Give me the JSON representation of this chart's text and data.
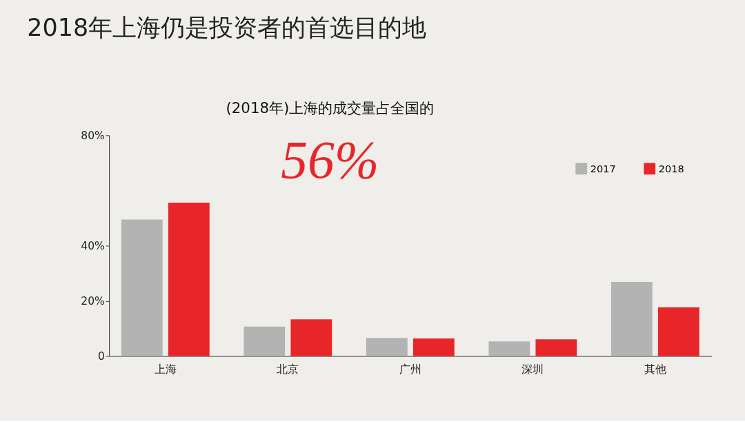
{
  "chart_data": {
    "type": "bar",
    "title": "2018年上海仍是投资者的首选目的地",
    "annotations": [
      "(2018年)上海的成交量占全国的",
      "56%"
    ],
    "categories": [
      "上海",
      "北京",
      "广州",
      "深圳",
      "其他"
    ],
    "series": [
      {
        "name": "2017",
        "color": "#b3b3b3",
        "values": [
          49.5,
          10.7,
          6.6,
          5.3,
          26.9
        ]
      },
      {
        "name": "2018",
        "color": "#e8262a",
        "values": [
          55.6,
          13.3,
          6.4,
          6.1,
          17.7
        ]
      }
    ],
    "ylim": [
      0,
      80
    ],
    "yticks": [
      {
        "value": 0,
        "label": "0"
      },
      {
        "value": 20,
        "label": "20%"
      },
      {
        "value": 40,
        "label": "40%"
      },
      {
        "value": 80,
        "label": "80%"
      }
    ],
    "grid": false,
    "legend": "top right"
  }
}
